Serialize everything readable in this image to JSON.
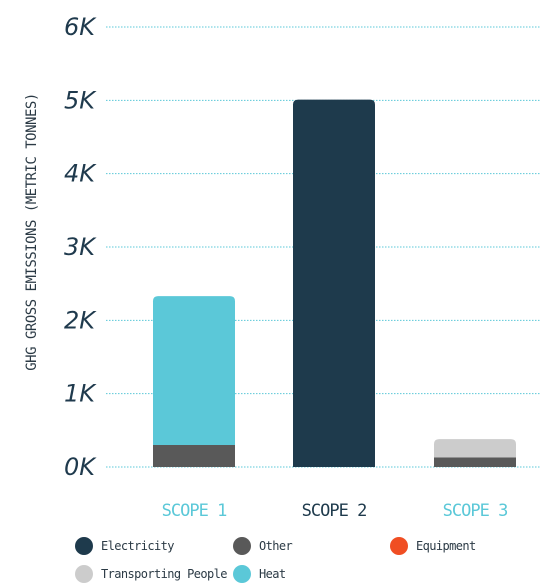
{
  "chart_data": {
    "type": "bar",
    "stacked": true,
    "ylabel": "GHG GROSS EMISSIONS (METRIC TONNES)",
    "xlabel": "",
    "ylim": [
      0,
      6000
    ],
    "yticks": [
      0,
      1000,
      2000,
      3000,
      4000,
      5000,
      6000
    ],
    "ytick_labels": [
      "0K",
      "1K",
      "2K",
      "3K",
      "4K",
      "5K",
      "6K"
    ],
    "grid": "horizontal dotted",
    "categories": [
      "SCOPE 1",
      "SCOPE 2",
      "SCOPE 3"
    ],
    "category_colors": [
      "#5bc8d8",
      "#1e3a4c",
      "#5bc8d8"
    ],
    "series": [
      {
        "name": "Other",
        "color": "#595959",
        "values": [
          300,
          0,
          130
        ]
      },
      {
        "name": "Heat",
        "color": "#5bc8d8",
        "values": [
          2030,
          0,
          0
        ]
      },
      {
        "name": "Electricity",
        "color": "#1e3a4c",
        "values": [
          0,
          5010,
          0
        ]
      },
      {
        "name": "Equipment",
        "color": "#f04e23",
        "values": [
          0,
          0,
          0
        ]
      },
      {
        "name": "Transporting People",
        "color": "#cccccc",
        "values": [
          0,
          0,
          250
        ]
      }
    ],
    "legend": [
      {
        "label": "Electricity",
        "color": "#1e3a4c"
      },
      {
        "label": "Other",
        "color": "#595959"
      },
      {
        "label": "Equipment",
        "color": "#f04e23"
      },
      {
        "label": "Transporting People",
        "color": "#cccccc"
      },
      {
        "label": "Heat",
        "color": "#5bc8d8"
      }
    ],
    "legend_placement": "bottom"
  }
}
